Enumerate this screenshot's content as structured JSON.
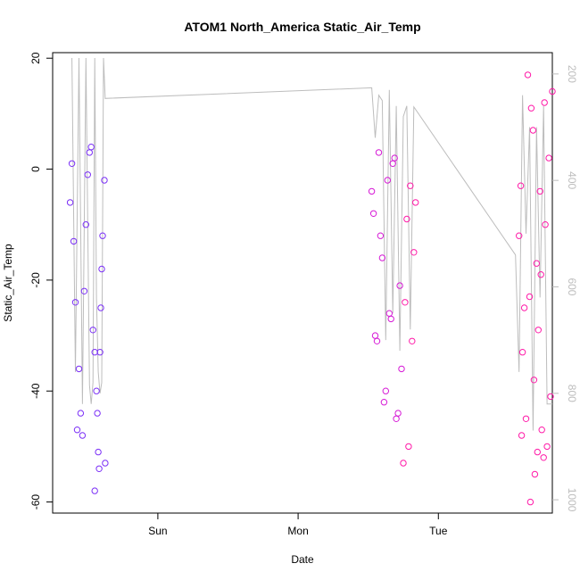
{
  "chart_data": {
    "type": "scatter",
    "title": "ATOM1 North_America Static_Air_Temp",
    "xlabel": "Date",
    "ylabel": "Static_Air_Temp",
    "x_tick_labels": [
      "Sun",
      "Mon",
      "Tue"
    ],
    "y_ticks": [
      "20",
      "0",
      "-20",
      "-40",
      "-60"
    ],
    "y_tick_values": [
      20,
      0,
      -20,
      -40,
      -60
    ],
    "ylim": [
      -62,
      21
    ],
    "y2_ticks": [
      "200",
      "400",
      "600",
      "800",
      "1000"
    ],
    "y2_tick_values": [
      200,
      400,
      600,
      800,
      1000
    ],
    "y2lim": [
      1025,
      160
    ],
    "y2_reversed": true,
    "xlim_hours": [
      -14,
      14.5
    ],
    "x_tick_hours": [
      -8,
      0,
      8
    ],
    "grid": false,
    "legend": "none",
    "colors": {
      "series_start": "#7b2ff7",
      "series_mid": "#d61ad6",
      "series_end": "#ff1aa8",
      "pressure_line": "#bdbdbd",
      "right_axis": "#bdbdbd"
    },
    "series": [
      {
        "x_hours": [
          -13.0,
          -12.8,
          -12.6,
          -12.4,
          -12.2,
          -12.0,
          -11.8,
          -11.6,
          -11.5,
          -11.4,
          -11.3,
          -11.2,
          -11.0
        ],
        "values": [
          -6,
          -13,
          -47,
          -44,
          -22,
          -1,
          4,
          -58,
          -40,
          -51,
          -33,
          -18,
          -53
        ]
      },
      {
        "x_hours": [
          -12.9,
          -12.7,
          -12.5,
          -12.3,
          -12.1,
          -11.9,
          -11.7,
          -11.6,
          -11.45,
          -11.35,
          -11.25,
          -11.15,
          -11.05
        ],
        "values": [
          1,
          -24,
          -36,
          -48,
          -10,
          3,
          -29,
          -33,
          -44,
          -54,
          -25,
          -12,
          -2
        ]
      },
      {
        "x_hours": [
          4.2,
          4.4,
          4.6,
          4.8,
          5.0,
          5.2,
          5.4,
          5.6,
          5.8,
          6.0,
          6.2,
          6.4,
          6.6
        ],
        "values": [
          -4,
          -30,
          3,
          -16,
          -40,
          -26,
          1,
          -45,
          -21,
          -53,
          -9,
          -3,
          -15
        ]
      },
      {
        "x_hours": [
          4.3,
          4.5,
          4.7,
          4.9,
          5.1,
          5.3,
          5.5,
          5.7,
          5.9,
          6.1,
          6.3,
          6.5,
          6.7
        ],
        "values": [
          -8,
          -31,
          -12,
          -42,
          -2,
          -27,
          2,
          -44,
          -36,
          -24,
          -50,
          -31,
          -6
        ]
      },
      {
        "x_hours": [
          12.6,
          12.8,
          13.0,
          13.2,
          13.4,
          13.6,
          13.8,
          14.0,
          14.2,
          14.4,
          14.5,
          13.1,
          13.7
        ],
        "values": [
          -12,
          -33,
          -45,
          -23,
          7,
          -17,
          -4,
          -52,
          -50,
          -41,
          14,
          17,
          -29
        ]
      },
      {
        "x_hours": [
          12.7,
          12.9,
          13.3,
          13.5,
          13.9,
          14.1,
          14.3,
          13.25,
          13.45,
          13.65,
          13.85,
          14.05,
          12.75
        ],
        "values": [
          -3,
          -25,
          11,
          -55,
          -47,
          -10,
          2,
          -60,
          -38,
          -51,
          -19,
          12,
          -48
        ]
      }
    ],
    "pressure_line_note": "thin grey line on secondary axis"
  }
}
